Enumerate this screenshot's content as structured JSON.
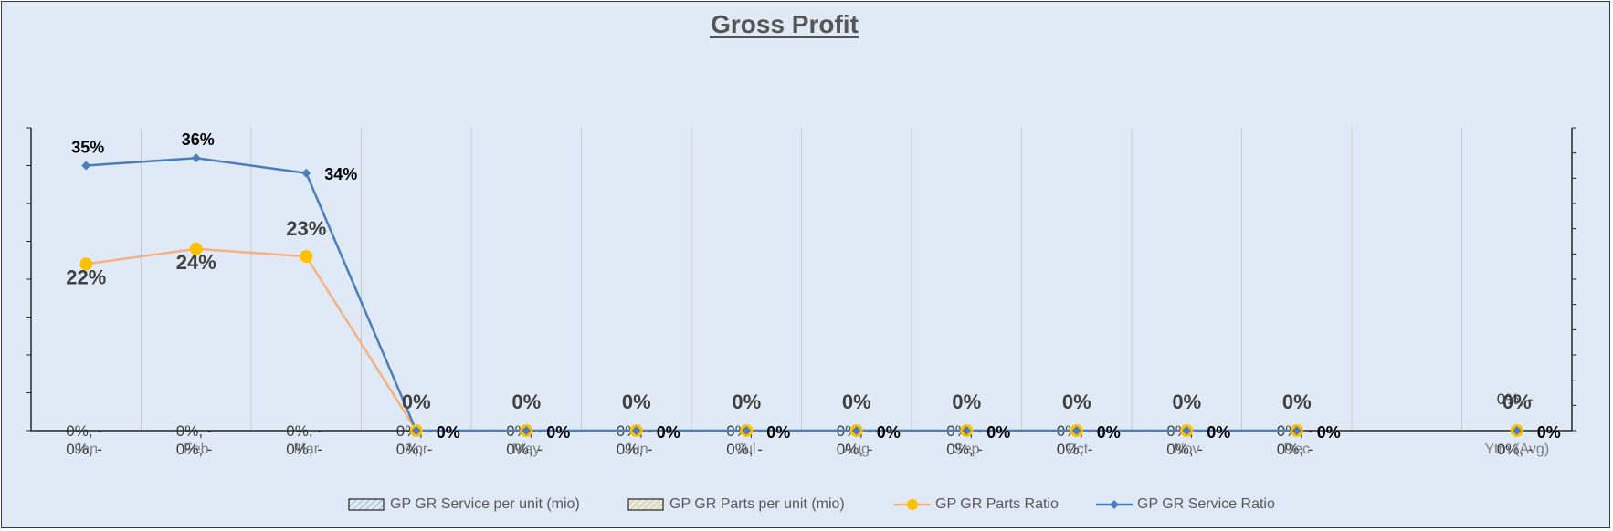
{
  "chart_data": {
    "type": "line",
    "title": "Gross Profit",
    "categories": [
      "Jan",
      "Feb",
      "Mar",
      "Apr",
      "May",
      "Jun",
      "Jul",
      "Aug",
      "Sep",
      "Oct",
      "Nov",
      "Dec",
      "",
      "Ytm (Avg)"
    ],
    "series": [
      {
        "name": "GP GR Service per unit  (mio)",
        "kind": "bar",
        "color": "#1f2a44",
        "values": [
          0,
          0,
          0,
          0,
          0,
          0,
          0,
          0,
          0,
          0,
          0,
          0,
          null,
          0
        ],
        "labels": [
          "0%, -",
          "0%, -",
          "0%, -",
          "0%, -",
          "0%, -",
          "0%, -",
          "0%, -",
          "0%, -",
          "0%, -",
          "0%, -",
          "0%, -",
          "0%, -",
          "",
          "0%, -"
        ]
      },
      {
        "name": "GP GR Parts per unit  (mio)",
        "kind": "bar",
        "color": "#ffc000",
        "values": [
          0,
          0,
          0,
          0,
          0,
          0,
          0,
          0,
          0,
          0,
          0,
          0,
          null,
          0
        ],
        "labels": [
          "0%, -",
          "0%, -",
          "0%, -",
          "0%, -",
          "0%, -",
          "0%, -",
          "0%, -",
          "0%, -",
          "0%, -",
          "0%, -",
          "0%, -",
          "0%, -",
          "",
          "0%, -"
        ]
      },
      {
        "name": "GP GR Parts Ratio",
        "kind": "line",
        "color": "#f4b183",
        "marker_color": "#ffc000",
        "values": [
          22,
          24,
          23,
          0,
          0,
          0,
          0,
          0,
          0,
          0,
          0,
          0,
          null,
          0
        ],
        "labels": [
          "22%",
          "24%",
          "23%",
          "0%",
          "0%",
          "0%",
          "0%",
          "0%",
          "0%",
          "0%",
          "0%",
          "0%",
          "",
          "0%"
        ]
      },
      {
        "name": "GP GR Service Ratio",
        "kind": "line",
        "color": "#4a7ebb",
        "values": [
          35,
          36,
          34,
          0,
          0,
          0,
          0,
          0,
          0,
          0,
          0,
          0,
          null,
          0
        ],
        "labels": [
          "35%",
          "36%",
          "34%",
          "0%",
          "0%",
          "0%",
          "0%",
          "0%",
          "0%",
          "0%",
          "0%",
          "0%",
          "",
          "0%"
        ]
      }
    ],
    "ylim": [
      0,
      40
    ],
    "grid": "vertical",
    "legend": "bottom"
  }
}
